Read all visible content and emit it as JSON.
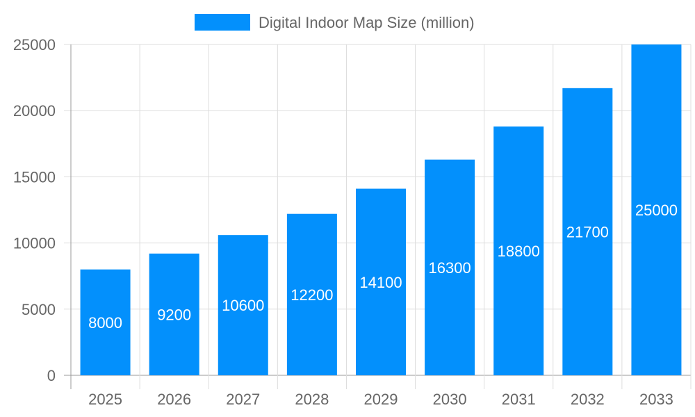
{
  "chart_data": {
    "type": "bar",
    "title": "",
    "xlabel": "",
    "ylabel": "",
    "categories": [
      "2025",
      "2026",
      "2027",
      "2028",
      "2029",
      "2030",
      "2031",
      "2032",
      "2033"
    ],
    "series": [
      {
        "name": "Digital Indoor Map Size (million)",
        "values": [
          8000,
          9200,
          10600,
          12200,
          14100,
          16300,
          18800,
          21700,
          25000
        ],
        "color": "#0390fc"
      }
    ],
    "ylim": [
      0,
      25000
    ],
    "yticks": [
      0,
      5000,
      10000,
      15000,
      20000,
      25000
    ],
    "grid": true,
    "legend": "top-center",
    "data_labels": true
  }
}
